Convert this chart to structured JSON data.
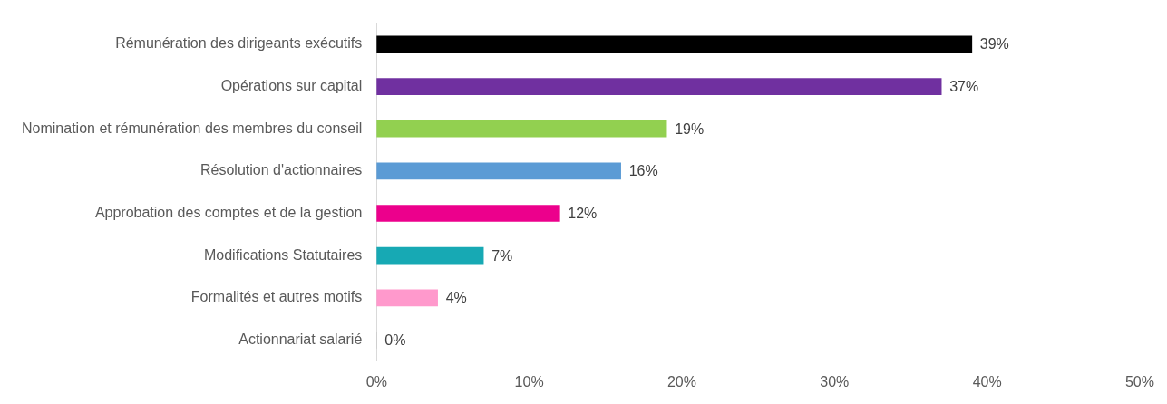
{
  "chart_data": {
    "type": "bar",
    "orientation": "horizontal",
    "categories": [
      "Rémunération des dirigeants exécutifs",
      "Opérations sur capital",
      "Nomination et rémunération des membres du conseil",
      "Résolution d'actionnaires",
      "Approbation des comptes et de la gestion",
      "Modifications Statutaires",
      "Formalités et autres motifs",
      "Actionnariat salarié"
    ],
    "values": [
      39,
      37,
      19,
      16,
      12,
      7,
      4,
      0
    ],
    "colors": [
      "#000000",
      "#7030a0",
      "#92d050",
      "#5b9bd5",
      "#ec008c",
      "#17a9b4",
      "#ff99cc",
      "#bfbfbf"
    ],
    "value_labels": [
      "39%",
      "37%",
      "19%",
      "16%",
      "12%",
      "7%",
      "4%",
      "0%"
    ],
    "xlim": [
      0,
      50
    ],
    "xticks": [
      {
        "value": 0,
        "label": "0%"
      },
      {
        "value": 10,
        "label": "10%"
      },
      {
        "value": 20,
        "label": "20%"
      },
      {
        "value": 30,
        "label": "30%"
      },
      {
        "value": 40,
        "label": "40%"
      },
      {
        "value": 50,
        "label": "50%"
      }
    ],
    "grid": false,
    "legend": false
  }
}
